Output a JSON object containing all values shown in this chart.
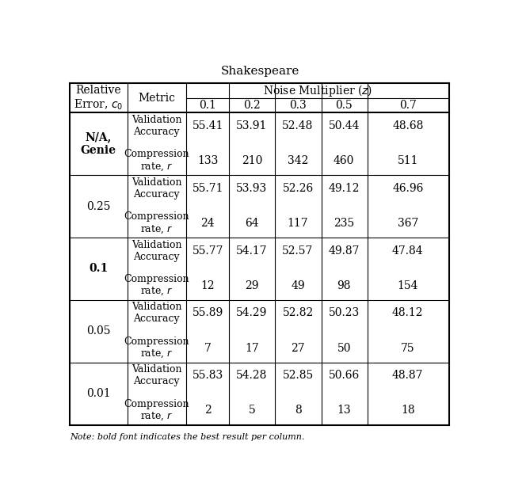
{
  "title": "Shakespeare",
  "z_vals": [
    "0.1",
    "0.2",
    "0.3",
    "0.5",
    "0.7"
  ],
  "rows": [
    {
      "label": "N/A,\nGenie",
      "bold_label": true,
      "val_acc": [
        "55.41",
        "53.91",
        "52.48",
        "50.44",
        "48.68"
      ],
      "comp_rate": [
        "133",
        "210",
        "342",
        "460",
        "511"
      ]
    },
    {
      "label": "0.25",
      "bold_label": false,
      "val_acc": [
        "55.71",
        "53.93",
        "52.26",
        "49.12",
        "46.96"
      ],
      "comp_rate": [
        "24",
        "64",
        "117",
        "235",
        "367"
      ]
    },
    {
      "label": "0.1",
      "bold_label": true,
      "val_acc": [
        "55.77",
        "54.17",
        "52.57",
        "49.87",
        "47.84"
      ],
      "comp_rate": [
        "12",
        "29",
        "49",
        "98",
        "154"
      ]
    },
    {
      "label": "0.05",
      "bold_label": false,
      "val_acc": [
        "55.89",
        "54.29",
        "52.82",
        "50.23",
        "48.12"
      ],
      "comp_rate": [
        "7",
        "17",
        "27",
        "50",
        "75"
      ]
    },
    {
      "label": "0.01",
      "bold_label": false,
      "val_acc": [
        "55.83",
        "54.28",
        "52.85",
        "50.66",
        "48.87"
      ],
      "comp_rate": [
        "2",
        "5",
        "8",
        "13",
        "18"
      ]
    }
  ],
  "bg_color": "#ffffff",
  "text_color": "#000000",
  "line_color": "#000000",
  "title_fontsize": 11,
  "header_fontsize": 10,
  "data_fontsize": 10,
  "footnote_text": "Note: bold font indicates the best result per column.",
  "footnote_fontsize": 8
}
